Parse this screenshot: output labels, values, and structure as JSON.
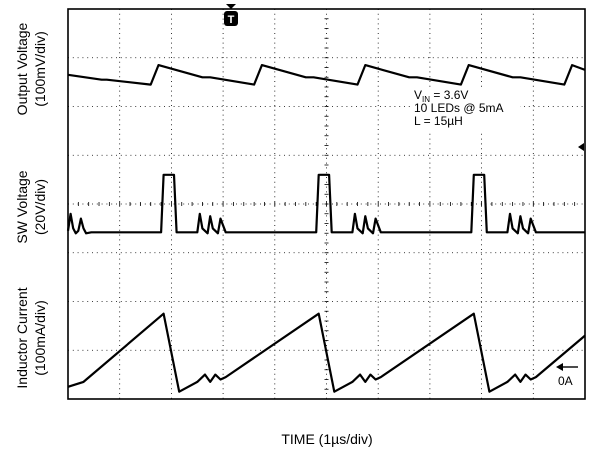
{
  "chart_data": {
    "type": "line",
    "title": "",
    "xlabel": "TIME (1µs/div)",
    "x_divisions": 10,
    "y_divisions": 8,
    "grid": true,
    "x_unit": "µs",
    "channels": [
      {
        "name": "Output Voltage",
        "ylabel_line1": "Output Voltage",
        "ylabel_line2": "(100mV/div)",
        "x": [
          0,
          0.65,
          0.75,
          1.6,
          1.75,
          2.6,
          2.75,
          3.6,
          3.75,
          4.6,
          4.75,
          5.6,
          5.75,
          6.6,
          6.75,
          7.6,
          7.75,
          8.6,
          8.75,
          9.6,
          9.75,
          10
        ],
        "y": [
          6.65,
          6.55,
          6.55,
          6.45,
          6.85,
          6.6,
          6.6,
          6.45,
          6.85,
          6.6,
          6.6,
          6.45,
          6.85,
          6.6,
          6.6,
          6.45,
          6.85,
          6.6,
          6.6,
          6.45,
          6.85,
          6.75
        ]
      },
      {
        "name": "SW Voltage",
        "ylabel_line1": "SW Voltage",
        "ylabel_line2": "(20V/div)",
        "x": [
          0,
          0.05,
          0.1,
          0.15,
          0.2,
          0.25,
          0.3,
          0.35,
          0.45,
          1.8,
          1.85,
          2.05,
          2.1,
          2.5,
          2.55,
          2.6,
          2.7,
          2.75,
          2.8,
          2.9,
          2.95,
          3.05,
          4.8,
          4.85,
          5.05,
          5.1,
          5.5,
          5.55,
          5.6,
          5.7,
          5.75,
          5.8,
          5.9,
          5.95,
          6.05,
          7.8,
          7.85,
          8.05,
          8.1,
          8.5,
          8.55,
          8.6,
          8.7,
          8.75,
          8.8,
          8.9,
          8.95,
          9.05,
          10
        ],
        "y": [
          3.45,
          3.8,
          3.5,
          3.4,
          3.45,
          3.7,
          3.5,
          3.4,
          3.42,
          3.42,
          4.6,
          4.6,
          3.42,
          3.42,
          3.8,
          3.5,
          3.4,
          3.75,
          3.5,
          3.4,
          3.7,
          3.42,
          3.42,
          4.6,
          4.6,
          3.42,
          3.42,
          3.8,
          3.5,
          3.4,
          3.75,
          3.5,
          3.4,
          3.7,
          3.42,
          3.42,
          4.6,
          4.6,
          3.42,
          3.42,
          3.8,
          3.5,
          3.4,
          3.75,
          3.5,
          3.4,
          3.7,
          3.42,
          3.42
        ]
      },
      {
        "name": "Inductor Current",
        "ylabel_line1": "Inductor Current",
        "ylabel_line2": "(100mA/div)",
        "x": [
          0,
          0.3,
          1.85,
          2.15,
          2.5,
          2.65,
          2.75,
          2.85,
          2.95,
          3.05,
          4.85,
          5.15,
          5.5,
          5.65,
          5.75,
          5.85,
          5.95,
          6.05,
          7.85,
          8.15,
          8.5,
          8.65,
          8.75,
          8.85,
          8.95,
          9.05,
          10
        ],
        "y": [
          0.25,
          0.35,
          1.75,
          0.15,
          0.35,
          0.5,
          0.35,
          0.5,
          0.4,
          0.45,
          1.75,
          0.15,
          0.35,
          0.5,
          0.35,
          0.5,
          0.4,
          0.45,
          1.75,
          0.15,
          0.35,
          0.5,
          0.35,
          0.5,
          0.4,
          0.45,
          1.3
        ]
      }
    ],
    "annotations": {
      "vin_prefix": "V",
      "vin_subscript": "IN",
      "vin_value": " = 3.6V",
      "leds": "10 LEDs @ 5mA",
      "inductance": "L = 15µH",
      "zero_label": "0A",
      "trigger_label": "T"
    }
  }
}
